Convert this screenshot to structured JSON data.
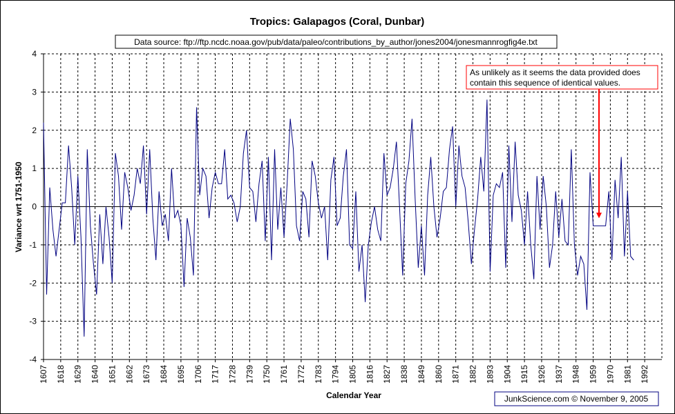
{
  "chart_data": {
    "type": "line",
    "title": "Tropics: Galapagos (Coral, Dunbar)",
    "subtitle": "Data source: ftp://ftp.ncdc.noaa.gov/pub/data/paleo/contributions_by_author/jones2004/jonesmannrogfig4e.txt",
    "xlabel": "Calendar Year",
    "ylabel": "Variance wrt 1751-1950",
    "xlim": [
      1607,
      2003
    ],
    "ylim": [
      -4,
      4
    ],
    "x_ticks": [
      "1607",
      "1618",
      "1629",
      "1640",
      "1651",
      "1662",
      "1673",
      "1684",
      "1695",
      "1706",
      "1717",
      "1728",
      "1739",
      "1750",
      "1761",
      "1772",
      "1783",
      "1794",
      "1805",
      "1816",
      "1827",
      "1838",
      "1849",
      "1860",
      "1871",
      "1882",
      "1893",
      "1904",
      "1915",
      "1926",
      "1937",
      "1948",
      "1959",
      "1970",
      "1981",
      "1992"
    ],
    "y_ticks": [
      "4",
      "3",
      "2",
      "1",
      "0",
      "-1",
      "-2",
      "-3",
      "-4"
    ],
    "grid": true,
    "series_color": "#000080",
    "annotation": {
      "text_line1": "As unlikely as it seems the data provided does",
      "text_line2": "contain this sequence of identical values.",
      "color": "#ff0000",
      "arrow_target": [
        1963,
        -0.5
      ]
    },
    "credit": "JunkScience.com ©  November 9, 2005",
    "series": [
      {
        "name": "Galapagos coral",
        "points": [
          [
            1607,
            2.2
          ],
          [
            1609,
            -2.3
          ],
          [
            1611,
            0.5
          ],
          [
            1613,
            -0.6
          ],
          [
            1615,
            -1.3
          ],
          [
            1617,
            -0.6
          ],
          [
            1619,
            0.1
          ],
          [
            1621,
            0.1
          ],
          [
            1623,
            1.6
          ],
          [
            1625,
            0.5
          ],
          [
            1627,
            -1.0
          ],
          [
            1629,
            0.8
          ],
          [
            1631,
            -0.8
          ],
          [
            1633,
            -3.4
          ],
          [
            1635,
            1.5
          ],
          [
            1637,
            -0.5
          ],
          [
            1639,
            -1.5
          ],
          [
            1641,
            -2.3
          ],
          [
            1643,
            -0.2
          ],
          [
            1645,
            -1.5
          ],
          [
            1647,
            0.0
          ],
          [
            1649,
            -0.8
          ],
          [
            1651,
            -2.0
          ],
          [
            1653,
            1.4
          ],
          [
            1655,
            0.8
          ],
          [
            1657,
            -0.6
          ],
          [
            1659,
            0.9
          ],
          [
            1661,
            0.5
          ],
          [
            1663,
            -0.1
          ],
          [
            1665,
            0.3
          ],
          [
            1667,
            1.0
          ],
          [
            1669,
            0.6
          ],
          [
            1671,
            1.6
          ],
          [
            1673,
            -0.2
          ],
          [
            1675,
            1.5
          ],
          [
            1677,
            -0.3
          ],
          [
            1679,
            -1.4
          ],
          [
            1681,
            0.4
          ],
          [
            1683,
            -0.5
          ],
          [
            1685,
            -0.2
          ],
          [
            1687,
            -0.9
          ],
          [
            1689,
            1.0
          ],
          [
            1691,
            -0.3
          ],
          [
            1693,
            -0.1
          ],
          [
            1695,
            -0.5
          ],
          [
            1697,
            -2.1
          ],
          [
            1699,
            -0.3
          ],
          [
            1701,
            -0.8
          ],
          [
            1703,
            -1.8
          ],
          [
            1705,
            2.6
          ],
          [
            1707,
            0.3
          ],
          [
            1709,
            1.0
          ],
          [
            1711,
            0.8
          ],
          [
            1713,
            -0.3
          ],
          [
            1715,
            0.5
          ],
          [
            1717,
            0.9
          ],
          [
            1719,
            0.6
          ],
          [
            1721,
            0.6
          ],
          [
            1723,
            1.5
          ],
          [
            1725,
            0.2
          ],
          [
            1727,
            0.3
          ],
          [
            1729,
            0.1
          ],
          [
            1731,
            -0.4
          ],
          [
            1733,
            0.0
          ],
          [
            1735,
            1.4
          ],
          [
            1737,
            2.0
          ],
          [
            1739,
            0.5
          ],
          [
            1741,
            0.4
          ],
          [
            1743,
            -0.4
          ],
          [
            1745,
            0.6
          ],
          [
            1747,
            1.2
          ],
          [
            1749,
            -0.9
          ],
          [
            1751,
            1.3
          ],
          [
            1753,
            -1.4
          ],
          [
            1755,
            1.5
          ],
          [
            1757,
            -0.6
          ],
          [
            1759,
            0.5
          ],
          [
            1761,
            -0.8
          ],
          [
            1763,
            0.6
          ],
          [
            1765,
            2.3
          ],
          [
            1767,
            1.5
          ],
          [
            1769,
            -0.5
          ],
          [
            1771,
            -0.9
          ],
          [
            1773,
            0.4
          ],
          [
            1775,
            0.2
          ],
          [
            1777,
            -0.8
          ],
          [
            1779,
            1.2
          ],
          [
            1781,
            0.8
          ],
          [
            1783,
            0.1
          ],
          [
            1785,
            -0.3
          ],
          [
            1787,
            0.0
          ],
          [
            1789,
            -1.4
          ],
          [
            1791,
            0.7
          ],
          [
            1793,
            1.3
          ],
          [
            1795,
            -0.5
          ],
          [
            1797,
            -0.3
          ],
          [
            1799,
            0.8
          ],
          [
            1801,
            1.5
          ],
          [
            1803,
            -1.0
          ],
          [
            1805,
            -1.1
          ],
          [
            1807,
            0.4
          ],
          [
            1809,
            -1.7
          ],
          [
            1811,
            -1.0
          ],
          [
            1813,
            -2.5
          ],
          [
            1815,
            -1.0
          ],
          [
            1817,
            -0.4
          ],
          [
            1819,
            0.0
          ],
          [
            1821,
            -0.6
          ],
          [
            1823,
            -0.9
          ],
          [
            1825,
            1.4
          ],
          [
            1827,
            0.3
          ],
          [
            1829,
            0.5
          ],
          [
            1831,
            1.0
          ],
          [
            1833,
            1.7
          ],
          [
            1835,
            0.0
          ],
          [
            1837,
            -1.8
          ],
          [
            1839,
            0.6
          ],
          [
            1841,
            1.2
          ],
          [
            1843,
            2.3
          ],
          [
            1845,
            0.2
          ],
          [
            1847,
            -1.6
          ],
          [
            1849,
            -0.5
          ],
          [
            1851,
            -1.8
          ],
          [
            1853,
            0.3
          ],
          [
            1855,
            1.3
          ],
          [
            1857,
            0.0
          ],
          [
            1859,
            -0.8
          ],
          [
            1861,
            -0.3
          ],
          [
            1863,
            0.4
          ],
          [
            1865,
            0.5
          ],
          [
            1867,
            1.5
          ],
          [
            1869,
            2.1
          ],
          [
            1871,
            0.0
          ],
          [
            1873,
            1.6
          ],
          [
            1875,
            0.8
          ],
          [
            1877,
            0.5
          ],
          [
            1879,
            -0.4
          ],
          [
            1881,
            -1.5
          ],
          [
            1883,
            -0.6
          ],
          [
            1885,
            0.2
          ],
          [
            1887,
            1.3
          ],
          [
            1889,
            0.4
          ],
          [
            1891,
            2.8
          ],
          [
            1893,
            -1.7
          ],
          [
            1895,
            0.3
          ],
          [
            1897,
            0.6
          ],
          [
            1899,
            0.5
          ],
          [
            1901,
            0.9
          ],
          [
            1903,
            -1.6
          ],
          [
            1905,
            1.6
          ],
          [
            1907,
            -0.4
          ],
          [
            1909,
            1.7
          ],
          [
            1911,
            0.3
          ],
          [
            1913,
            -0.1
          ],
          [
            1915,
            -1.0
          ],
          [
            1917,
            0.4
          ],
          [
            1919,
            -1.0
          ],
          [
            1921,
            -1.9
          ],
          [
            1923,
            0.8
          ],
          [
            1925,
            -0.6
          ],
          [
            1927,
            0.8
          ],
          [
            1929,
            0.0
          ],
          [
            1931,
            -1.6
          ],
          [
            1933,
            -1.0
          ],
          [
            1935,
            0.4
          ],
          [
            1937,
            -0.8
          ],
          [
            1939,
            0.2
          ],
          [
            1941,
            -0.9
          ],
          [
            1943,
            -1.0
          ],
          [
            1945,
            1.5
          ],
          [
            1947,
            -1.0
          ],
          [
            1949,
            -1.8
          ],
          [
            1951,
            -1.3
          ],
          [
            1953,
            -1.5
          ],
          [
            1955,
            -2.7
          ],
          [
            1957,
            0.9
          ],
          [
            1959,
            -0.5
          ],
          [
            1961,
            -0.5
          ],
          [
            1963,
            -0.5
          ],
          [
            1965,
            -0.5
          ],
          [
            1967,
            -0.5
          ],
          [
            1969,
            0.4
          ],
          [
            1971,
            -1.4
          ],
          [
            1973,
            0.7
          ],
          [
            1975,
            -0.3
          ],
          [
            1977,
            1.3
          ],
          [
            1979,
            -1.3
          ],
          [
            1981,
            0.4
          ],
          [
            1983,
            -1.3
          ],
          [
            1985,
            -1.4
          ]
        ]
      }
    ]
  }
}
